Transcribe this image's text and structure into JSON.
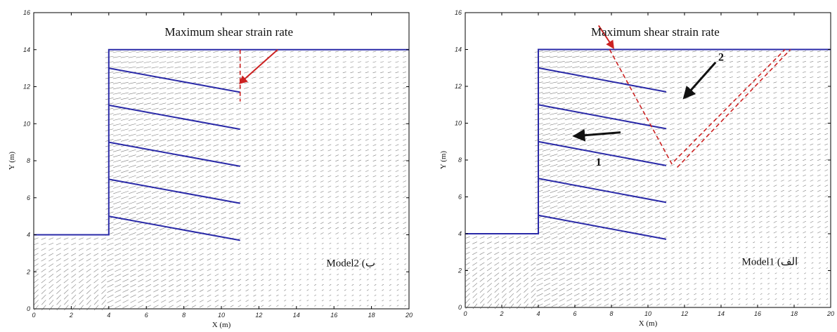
{
  "chart_data": [
    {
      "type": "vector-field",
      "title": "Maximum shear strain rate",
      "model_label": "Model2 (ب",
      "xlabel": "X (m)",
      "ylabel": "Y (m)",
      "xlim": [
        0,
        20
      ],
      "ylim": [
        0,
        16
      ],
      "xticks": [
        "0",
        "2",
        "4",
        "6",
        "8",
        "10",
        "12",
        "14",
        "16",
        "18",
        "20"
      ],
      "yticks": [
        "0",
        "2",
        "4",
        "6",
        "8",
        "10",
        "12",
        "14",
        "16"
      ],
      "grid": false,
      "wall": [
        [
          0,
          4
        ],
        [
          4,
          4
        ],
        [
          4,
          14
        ],
        [
          20,
          14
        ]
      ],
      "nails": [
        {
          "from": [
            4,
            13
          ],
          "to": [
            11,
            11.7
          ]
        },
        {
          "from": [
            4,
            11
          ],
          "to": [
            11,
            9.7
          ]
        },
        {
          "from": [
            4,
            9
          ],
          "to": [
            11,
            7.7
          ]
        },
        {
          "from": [
            4,
            7
          ],
          "to": [
            11,
            5.7
          ]
        },
        {
          "from": [
            4,
            5
          ],
          "to": [
            11,
            3.7
          ]
        }
      ],
      "failure_surface": [
        [
          11,
          14
        ],
        [
          11,
          11.2
        ]
      ],
      "arrows": [
        {
          "from": [
            13,
            14
          ],
          "to": [
            11,
            12.2
          ],
          "color": "#cc2222"
        }
      ],
      "zone_labels": [],
      "colors": {
        "wall": "#2a2aa8",
        "failure": "#cc2222",
        "field": "#555555"
      }
    },
    {
      "type": "vector-field",
      "title": "Maximum shear strain rate",
      "model_label": "Model1 (الف",
      "xlabel": "X (m)",
      "ylabel": "Y (m)",
      "xlim": [
        0,
        20
      ],
      "ylim": [
        0,
        16
      ],
      "xticks": [
        "0",
        "2",
        "4",
        "6",
        "8",
        "10",
        "12",
        "14",
        "16",
        "18",
        "20"
      ],
      "yticks": [
        "0",
        "2",
        "4",
        "6",
        "8",
        "10",
        "12",
        "14",
        "16"
      ],
      "grid": false,
      "wall": [
        [
          0,
          4
        ],
        [
          4,
          4
        ],
        [
          4,
          14
        ],
        [
          20,
          14
        ]
      ],
      "nails": [
        {
          "from": [
            4,
            13
          ],
          "to": [
            11,
            11.7
          ]
        },
        {
          "from": [
            4,
            11
          ],
          "to": [
            11,
            9.7
          ]
        },
        {
          "from": [
            4,
            9
          ],
          "to": [
            11,
            7.7
          ]
        },
        {
          "from": [
            4,
            7
          ],
          "to": [
            11,
            5.7
          ]
        },
        {
          "from": [
            4,
            5
          ],
          "to": [
            11,
            3.7
          ]
        }
      ],
      "failure_surface": [
        [
          7.9,
          14
        ],
        [
          11.3,
          7.8
        ],
        [
          17.5,
          14
        ]
      ],
      "failure_surface_2": [
        [
          11.6,
          7.6
        ],
        [
          17.8,
          14
        ]
      ],
      "arrows": [
        {
          "from": [
            7.3,
            15.3
          ],
          "to": [
            8.1,
            14.1
          ],
          "color": "#cc2222"
        },
        {
          "from": [
            13.7,
            13.3
          ],
          "to": [
            12.0,
            11.4
          ],
          "color": "#111111"
        },
        {
          "from": [
            8.5,
            9.5
          ],
          "to": [
            6.0,
            9.3
          ],
          "color": "#111111"
        }
      ],
      "zone_labels": [
        {
          "text": "1",
          "x": 7.3,
          "y": 7.7
        },
        {
          "text": "2",
          "x": 14.0,
          "y": 13.4
        }
      ],
      "colors": {
        "wall": "#2a2aa8",
        "failure": "#cc2222",
        "field": "#555555"
      }
    }
  ]
}
